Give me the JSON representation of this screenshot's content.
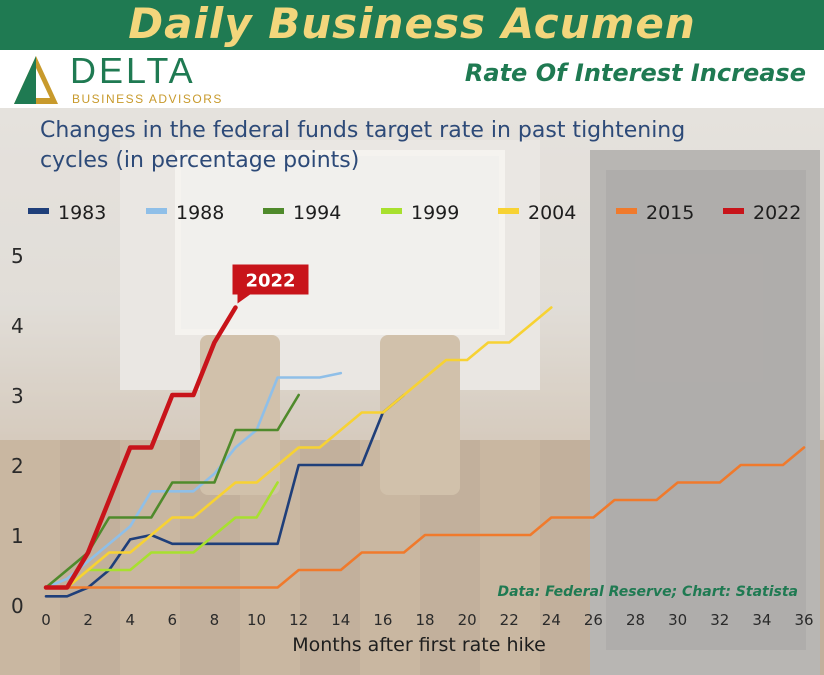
{
  "header": {
    "banner_title": "Daily Business Acumen",
    "logo_word": "DELTA",
    "logo_sub": "BUSINESS ADVISORS",
    "subtitle": "Rate Of Interest Increase"
  },
  "colors": {
    "banner": "#1f7a52",
    "banner_text": "#f3d67c",
    "title_text": "#2d4a78"
  },
  "chart_data": {
    "type": "line",
    "title": "Changes in the federal funds target rate in past tightening cycles (in percentage points)",
    "xlabel": "Months after first rate hike",
    "ylabel": "",
    "xlim": [
      0,
      36
    ],
    "ylim": [
      0,
      5
    ],
    "x_ticks": [
      "0",
      "2",
      "4",
      "6",
      "8",
      "10",
      "12",
      "14",
      "16",
      "18",
      "20",
      "22",
      "24",
      "26",
      "28",
      "30",
      "32",
      "34",
      "36"
    ],
    "y_ticks": [
      "0",
      "1",
      "2",
      "3",
      "4",
      "5"
    ],
    "legend_position": "top",
    "source": "Data: Federal Reserve; Chart: Statista",
    "callout": "2022",
    "series": [
      {
        "name": "1983",
        "color": "#1f3f7a",
        "x": [
          0,
          1,
          2,
          3,
          4,
          5,
          6,
          7,
          8,
          9,
          10,
          11,
          12,
          13,
          14,
          15,
          16,
          17
        ],
        "y": [
          0.125,
          0.125,
          0.25,
          0.5,
          0.9375,
          1.0,
          0.875,
          0.875,
          0.875,
          0.875,
          0.875,
          0.875,
          2.0,
          2.0,
          2.0,
          2.0,
          2.75,
          3.0
        ]
      },
      {
        "name": "1988",
        "color": "#8fbfe8",
        "x": [
          0,
          1,
          2,
          3,
          4,
          5,
          6,
          7,
          8,
          9,
          10,
          11,
          12,
          13,
          14
        ],
        "y": [
          0.25,
          0.375,
          0.625,
          0.875,
          1.125,
          1.625,
          1.625,
          1.625,
          1.875,
          2.25,
          2.5,
          3.25,
          3.25,
          3.25,
          3.3125
        ]
      },
      {
        "name": "1994",
        "color": "#4f8a2b",
        "x": [
          0,
          1,
          2,
          3,
          4,
          5,
          6,
          7,
          8,
          9,
          10,
          11,
          12
        ],
        "y": [
          0.25,
          0.5,
          0.75,
          1.25,
          1.25,
          1.25,
          1.75,
          1.75,
          1.75,
          2.5,
          2.5,
          2.5,
          3.0
        ]
      },
      {
        "name": "1999",
        "color": "#a8e02e",
        "x": [
          0,
          1,
          2,
          3,
          4,
          5,
          6,
          7,
          8,
          9,
          10,
          11
        ],
        "y": [
          0.25,
          0.25,
          0.5,
          0.5,
          0.5,
          0.75,
          0.75,
          0.75,
          1.0,
          1.25,
          1.25,
          1.75
        ]
      },
      {
        "name": "2004",
        "color": "#f7d233",
        "x": [
          0,
          1,
          2,
          3,
          4,
          5,
          6,
          7,
          8,
          9,
          10,
          11,
          12,
          13,
          14,
          15,
          16,
          17,
          18,
          19,
          20,
          21,
          22,
          23,
          24
        ],
        "y": [
          0.25,
          0.25,
          0.5,
          0.75,
          0.75,
          1.0,
          1.25,
          1.25,
          1.5,
          1.75,
          1.75,
          2.0,
          2.25,
          2.25,
          2.5,
          2.75,
          2.75,
          3.0,
          3.25,
          3.5,
          3.5,
          3.75,
          3.75,
          4.0,
          4.25
        ]
      },
      {
        "name": "2015",
        "color": "#f07a2c",
        "x": [
          0,
          1,
          2,
          3,
          4,
          5,
          6,
          7,
          8,
          9,
          10,
          11,
          12,
          13,
          14,
          15,
          16,
          17,
          18,
          19,
          20,
          21,
          22,
          23,
          24,
          25,
          26,
          27,
          28,
          29,
          30,
          31,
          32,
          33,
          34,
          35,
          36
        ],
        "y": [
          0.25,
          0.25,
          0.25,
          0.25,
          0.25,
          0.25,
          0.25,
          0.25,
          0.25,
          0.25,
          0.25,
          0.25,
          0.5,
          0.5,
          0.5,
          0.75,
          0.75,
          0.75,
          1.0,
          1.0,
          1.0,
          1.0,
          1.0,
          1.0,
          1.25,
          1.25,
          1.25,
          1.5,
          1.5,
          1.5,
          1.75,
          1.75,
          1.75,
          2.0,
          2.0,
          2.0,
          2.25
        ]
      },
      {
        "name": "2022",
        "color": "#c8141a",
        "x": [
          0,
          1,
          2,
          3,
          4,
          5,
          6,
          7,
          8,
          9
        ],
        "y": [
          0.25,
          0.25,
          0.75,
          1.5,
          2.25,
          2.25,
          3.0,
          3.0,
          3.75,
          4.25
        ]
      }
    ]
  }
}
